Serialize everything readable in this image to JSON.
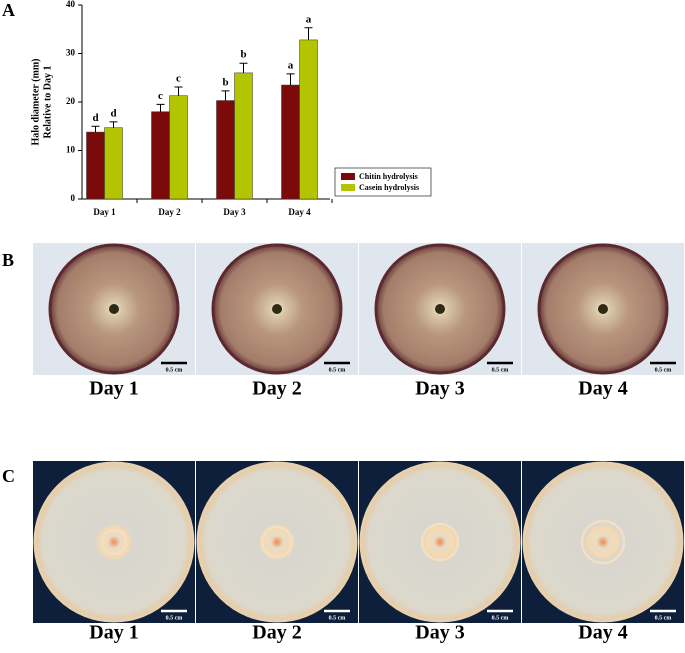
{
  "chart_data": {
    "type": "bar",
    "panel_label": "A",
    "y_label": [
      "Halo diameter (mm)",
      "Relative to Day 1"
    ],
    "categories": [
      "Day 1",
      "Day 2",
      "Day 3",
      "Day 4"
    ],
    "series": [
      {
        "name": "Chitin hydrolysis",
        "color": "#7b0a0a",
        "values": [
          13.8,
          18,
          20.3,
          23.5
        ],
        "errors": [
          1.2,
          1.5,
          2,
          2.3
        ],
        "significance": [
          "d",
          "c",
          "b",
          "a"
        ]
      },
      {
        "name": "Casein hydrolysis",
        "color": "#b3c400",
        "values": [
          14.7,
          21.3,
          26,
          32.8
        ],
        "errors": [
          1.2,
          1.8,
          2,
          2.5
        ],
        "significance": [
          "d",
          "c",
          "b",
          "a"
        ]
      }
    ],
    "ylim": [
      0,
      40
    ],
    "yticks": [
      0,
      10,
      20,
      30,
      40
    ],
    "legend": "right"
  },
  "panels": [
    {
      "label": "B",
      "captions": [
        "Day 1",
        "Day 2",
        "Day 3",
        "Day 4"
      ],
      "scale_bar": "0.5 cm"
    },
    {
      "label": "C",
      "captions": [
        "Day 1",
        "Day 2",
        "Day 3",
        "Day 4"
      ],
      "scale_bar": "0.5 cm"
    }
  ]
}
